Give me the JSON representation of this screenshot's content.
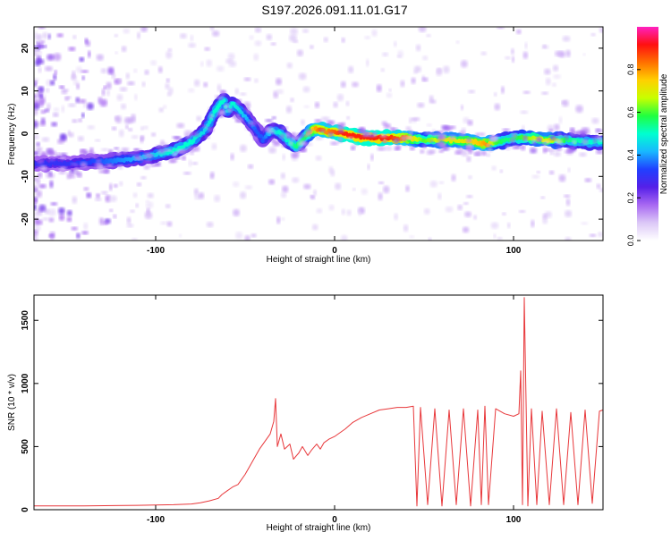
{
  "title": "S197.2026.091.11.01.G17",
  "colors": {
    "snr_line": "#e8373a",
    "axis": "#000000",
    "colormap": [
      "#ffffff",
      "#dcc8f7",
      "#a868f2",
      "#5520e8",
      "#2040ff",
      "#18b8ff",
      "#00ffd0",
      "#20ff40",
      "#c8ff00",
      "#ffd000",
      "#ff7000",
      "#ff1010",
      "#ff20c0"
    ]
  },
  "chart_data": [
    {
      "type": "heatmap",
      "title": "S197.2026.091.11.01.G17",
      "xlabel": "Height of straight line (km)",
      "ylabel": "Frequency (Hz)",
      "xlim": [
        -168,
        150
      ],
      "ylim": [
        -25,
        25
      ],
      "xticks": [
        -100,
        0,
        100
      ],
      "yticks": [
        20,
        10,
        0,
        -10,
        -20
      ],
      "colorbar": {
        "label": "Normalized spectral amplitude",
        "range": [
          0,
          1
        ],
        "ticks": [
          "0.0",
          "0.2",
          "0.4",
          "0.6",
          "0.8"
        ]
      },
      "ridge": {
        "x": [
          -168,
          -150,
          -130,
          -115,
          -100,
          -90,
          -80,
          -72,
          -67,
          -62,
          -60,
          -57,
          -52,
          -48,
          -44,
          -40,
          -35,
          -30,
          -25,
          -21,
          -17,
          -12,
          -8,
          -5,
          0,
          5,
          10,
          20,
          30,
          40,
          50,
          60,
          70,
          80,
          85,
          90,
          95,
          100,
          110,
          120,
          130,
          140,
          150
        ],
        "y": [
          -7,
          -7,
          -6.5,
          -6,
          -5,
          -4,
          -2,
          1,
          5,
          8,
          5,
          7,
          5,
          3,
          1,
          -1.5,
          1,
          0,
          -2,
          -3,
          -1,
          1,
          1,
          0.5,
          0.5,
          0,
          -0.5,
          -1,
          -1,
          -1,
          -1.5,
          -1.5,
          -1.5,
          -2,
          -2.5,
          -2,
          -1.5,
          -1,
          -1,
          -1.5,
          -1.5,
          -2,
          -2
        ]
      },
      "ridge_amplitude": [
        0.3,
        0.3,
        0.35,
        0.4,
        0.45,
        0.5,
        0.5,
        0.45,
        0.5,
        0.5,
        0.45,
        0.5,
        0.45,
        0.4,
        0.35,
        0.35,
        0.45,
        0.5,
        0.5,
        0.55,
        0.55,
        0.75,
        0.85,
        0.8,
        0.85,
        0.9,
        0.9,
        0.9,
        0.9,
        0.8,
        0.6,
        0.7,
        0.7,
        0.75,
        0.8,
        0.6,
        0.55,
        0.55,
        0.65,
        0.7,
        0.55,
        0.5,
        0.5
      ]
    },
    {
      "type": "line",
      "xlabel": "Height of straight line (km)",
      "ylabel": "SNR (10 * v/v)",
      "xlim": [
        -168,
        150
      ],
      "ylim": [
        0,
        1700
      ],
      "xticks": [
        -100,
        0,
        100
      ],
      "yticks": [
        0,
        500,
        1000,
        1500
      ],
      "series": [
        {
          "x": [
            -168,
            -140,
            -110,
            -90,
            -80,
            -75,
            -70,
            -65,
            -63,
            -60,
            -57,
            -54,
            -50,
            -46,
            -42,
            -38,
            -36,
            -34,
            -33,
            -32,
            -30,
            -28,
            -25,
            -23,
            -20,
            -18,
            -15,
            -13,
            -10,
            -8,
            -6,
            -3,
            0,
            3,
            6,
            10,
            15,
            20,
            25,
            30,
            35,
            40,
            44,
            46,
            48,
            52,
            56,
            60,
            64,
            68,
            72,
            76,
            80,
            82,
            84,
            86,
            90,
            95,
            100,
            103,
            104,
            105,
            106,
            108,
            110,
            113,
            116,
            120,
            124,
            128,
            132,
            136,
            140,
            144,
            148,
            150
          ],
          "values": [
            30,
            30,
            35,
            40,
            45,
            55,
            70,
            90,
            120,
            150,
            180,
            200,
            280,
            380,
            480,
            560,
            600,
            700,
            880,
            500,
            600,
            480,
            520,
            400,
            450,
            500,
            430,
            470,
            520,
            480,
            530,
            560,
            580,
            610,
            640,
            690,
            730,
            760,
            790,
            800,
            810,
            810,
            820,
            30,
            810,
            40,
            800,
            30,
            790,
            40,
            800,
            30,
            790,
            40,
            820,
            40,
            800,
            760,
            740,
            760,
            1100,
            40,
            1680,
            30,
            800,
            40,
            780,
            40,
            800,
            40,
            770,
            40,
            790,
            50,
            780,
            790
          ]
        }
      ]
    }
  ]
}
